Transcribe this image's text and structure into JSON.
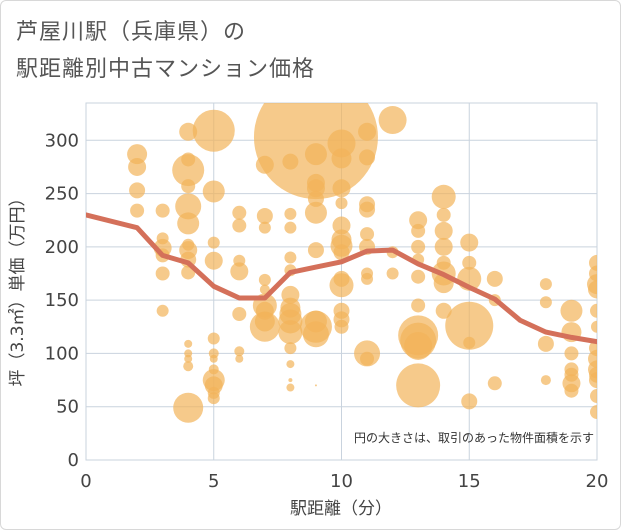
{
  "title_line1": "芦屋川駅（兵庫県）の",
  "title_line2": "駅距離別中古マンション価格",
  "note": "円の大きさは、取引のあった物件面積を示す",
  "chart_data": {
    "type": "scatter",
    "xlabel": "駅距離（分）",
    "ylabel": "坪（3.3㎡）単価（万円）",
    "xlim": [
      0,
      20
    ],
    "ylim": [
      0,
      335
    ],
    "xticks": [
      0,
      5,
      10,
      15,
      20
    ],
    "yticks": [
      0,
      50,
      100,
      150,
      200,
      250,
      300
    ],
    "grid": true,
    "colors": {
      "bubble": "#f2b45a",
      "trend": "#d4705a",
      "grid": "#c9d3de",
      "plot_bg": "#ffffff"
    },
    "bubbles": [
      {
        "x": 2,
        "y": 287,
        "s": 10
      },
      {
        "x": 2,
        "y": 275,
        "s": 9
      },
      {
        "x": 2,
        "y": 253,
        "s": 8
      },
      {
        "x": 2,
        "y": 234,
        "s": 7
      },
      {
        "x": 3,
        "y": 234,
        "s": 7
      },
      {
        "x": 3,
        "y": 208,
        "s": 6
      },
      {
        "x": 3,
        "y": 199,
        "s": 9
      },
      {
        "x": 3,
        "y": 192,
        "s": 7
      },
      {
        "x": 3,
        "y": 175,
        "s": 7
      },
      {
        "x": 3,
        "y": 140,
        "s": 6
      },
      {
        "x": 4,
        "y": 308,
        "s": 9
      },
      {
        "x": 4,
        "y": 282,
        "s": 7
      },
      {
        "x": 4,
        "y": 272,
        "s": 16
      },
      {
        "x": 4,
        "y": 257,
        "s": 7
      },
      {
        "x": 4,
        "y": 238,
        "s": 13
      },
      {
        "x": 4,
        "y": 222,
        "s": 11
      },
      {
        "x": 4,
        "y": 202,
        "s": 6
      },
      {
        "x": 4,
        "y": 197,
        "s": 9
      },
      {
        "x": 4,
        "y": 188,
        "s": 8
      },
      {
        "x": 4,
        "y": 176,
        "s": 7
      },
      {
        "x": 4,
        "y": 109,
        "s": 4
      },
      {
        "x": 4,
        "y": 100,
        "s": 4
      },
      {
        "x": 4,
        "y": 95,
        "s": 4
      },
      {
        "x": 4,
        "y": 88,
        "s": 5
      },
      {
        "x": 4,
        "y": 49,
        "s": 15
      },
      {
        "x": 5,
        "y": 309,
        "s": 21
      },
      {
        "x": 5,
        "y": 252,
        "s": 11
      },
      {
        "x": 5,
        "y": 204,
        "s": 6
      },
      {
        "x": 5,
        "y": 187,
        "s": 9
      },
      {
        "x": 5,
        "y": 114,
        "s": 6
      },
      {
        "x": 5,
        "y": 100,
        "s": 5
      },
      {
        "x": 5,
        "y": 95,
        "s": 4
      },
      {
        "x": 5,
        "y": 85,
        "s": 5
      },
      {
        "x": 5,
        "y": 75,
        "s": 11
      },
      {
        "x": 5,
        "y": 70,
        "s": 9
      },
      {
        "x": 5,
        "y": 63,
        "s": 6
      },
      {
        "x": 5,
        "y": 58,
        "s": 6
      },
      {
        "x": 6,
        "y": 232,
        "s": 7
      },
      {
        "x": 6,
        "y": 220,
        "s": 7
      },
      {
        "x": 6,
        "y": 187,
        "s": 6
      },
      {
        "x": 6,
        "y": 177,
        "s": 9
      },
      {
        "x": 6,
        "y": 137,
        "s": 7
      },
      {
        "x": 6,
        "y": 102,
        "s": 5
      },
      {
        "x": 6,
        "y": 95,
        "s": 4
      },
      {
        "x": 7,
        "y": 277,
        "s": 9
      },
      {
        "x": 7,
        "y": 229,
        "s": 8
      },
      {
        "x": 7,
        "y": 218,
        "s": 6
      },
      {
        "x": 7,
        "y": 169,
        "s": 6
      },
      {
        "x": 7,
        "y": 160,
        "s": 5
      },
      {
        "x": 7,
        "y": 145,
        "s": 12
      },
      {
        "x": 7,
        "y": 140,
        "s": 9
      },
      {
        "x": 7,
        "y": 130,
        "s": 10
      },
      {
        "x": 7,
        "y": 125,
        "s": 15
      },
      {
        "x": 8,
        "y": 280,
        "s": 8
      },
      {
        "x": 8,
        "y": 231,
        "s": 6
      },
      {
        "x": 8,
        "y": 218,
        "s": 6
      },
      {
        "x": 8,
        "y": 190,
        "s": 6
      },
      {
        "x": 8,
        "y": 178,
        "s": 6
      },
      {
        "x": 8,
        "y": 155,
        "s": 9
      },
      {
        "x": 8,
        "y": 143,
        "s": 10
      },
      {
        "x": 8,
        "y": 137,
        "s": 11
      },
      {
        "x": 8,
        "y": 130,
        "s": 12
      },
      {
        "x": 8,
        "y": 120,
        "s": 12
      },
      {
        "x": 8,
        "y": 105,
        "s": 6
      },
      {
        "x": 8,
        "y": 90,
        "s": 4
      },
      {
        "x": 8,
        "y": 75,
        "s": 2
      },
      {
        "x": 8,
        "y": 68,
        "s": 4
      },
      {
        "x": 9,
        "y": 303,
        "s": 62
      },
      {
        "x": 9,
        "y": 287,
        "s": 11
      },
      {
        "x": 9,
        "y": 260,
        "s": 9
      },
      {
        "x": 9,
        "y": 255,
        "s": 9
      },
      {
        "x": 9,
        "y": 245,
        "s": 8
      },
      {
        "x": 9,
        "y": 232,
        "s": 11
      },
      {
        "x": 9,
        "y": 197,
        "s": 8
      },
      {
        "x": 9,
        "y": 130,
        "s": 11
      },
      {
        "x": 9,
        "y": 125,
        "s": 16
      },
      {
        "x": 9,
        "y": 118,
        "s": 13
      },
      {
        "x": 9,
        "y": 70,
        "s": 1
      },
      {
        "x": 10,
        "y": 297,
        "s": 14
      },
      {
        "x": 10,
        "y": 283,
        "s": 10
      },
      {
        "x": 10,
        "y": 255,
        "s": 9
      },
      {
        "x": 10,
        "y": 241,
        "s": 6
      },
      {
        "x": 10,
        "y": 220,
        "s": 9
      },
      {
        "x": 10,
        "y": 207,
        "s": 10
      },
      {
        "x": 10,
        "y": 201,
        "s": 11
      },
      {
        "x": 10,
        "y": 195,
        "s": 8
      },
      {
        "x": 10,
        "y": 170,
        "s": 8
      },
      {
        "x": 10,
        "y": 164,
        "s": 12
      },
      {
        "x": 10,
        "y": 140,
        "s": 8
      },
      {
        "x": 10,
        "y": 132,
        "s": 8
      },
      {
        "x": 10,
        "y": 125,
        "s": 7
      },
      {
        "x": 11,
        "y": 308,
        "s": 9
      },
      {
        "x": 11,
        "y": 284,
        "s": 8
      },
      {
        "x": 11,
        "y": 240,
        "s": 8
      },
      {
        "x": 11,
        "y": 235,
        "s": 8
      },
      {
        "x": 11,
        "y": 212,
        "s": 7
      },
      {
        "x": 11,
        "y": 200,
        "s": 8
      },
      {
        "x": 11,
        "y": 175,
        "s": 6
      },
      {
        "x": 11,
        "y": 170,
        "s": 6
      },
      {
        "x": 11,
        "y": 100,
        "s": 13
      },
      {
        "x": 11,
        "y": 95,
        "s": 7
      },
      {
        "x": 12,
        "y": 319,
        "s": 14
      },
      {
        "x": 12,
        "y": 195,
        "s": 6
      },
      {
        "x": 12,
        "y": 175,
        "s": 6
      },
      {
        "x": 13,
        "y": 225,
        "s": 9
      },
      {
        "x": 13,
        "y": 215,
        "s": 7
      },
      {
        "x": 13,
        "y": 200,
        "s": 7
      },
      {
        "x": 13,
        "y": 188,
        "s": 6
      },
      {
        "x": 13,
        "y": 172,
        "s": 7
      },
      {
        "x": 13,
        "y": 145,
        "s": 7
      },
      {
        "x": 13,
        "y": 117,
        "s": 20
      },
      {
        "x": 13,
        "y": 112,
        "s": 18
      },
      {
        "x": 13,
        "y": 107,
        "s": 14
      },
      {
        "x": 13,
        "y": 70,
        "s": 22
      },
      {
        "x": 14,
        "y": 247,
        "s": 12
      },
      {
        "x": 14,
        "y": 230,
        "s": 7
      },
      {
        "x": 14,
        "y": 215,
        "s": 9
      },
      {
        "x": 14,
        "y": 200,
        "s": 9
      },
      {
        "x": 14,
        "y": 185,
        "s": 7
      },
      {
        "x": 14,
        "y": 175,
        "s": 12
      },
      {
        "x": 14,
        "y": 166,
        "s": 10
      },
      {
        "x": 14,
        "y": 140,
        "s": 8
      },
      {
        "x": 15,
        "y": 204,
        "s": 9
      },
      {
        "x": 15,
        "y": 185,
        "s": 7
      },
      {
        "x": 15,
        "y": 170,
        "s": 12
      },
      {
        "x": 15,
        "y": 126,
        "s": 24
      },
      {
        "x": 15,
        "y": 110,
        "s": 6
      },
      {
        "x": 15,
        "y": 55,
        "s": 8
      },
      {
        "x": 16,
        "y": 170,
        "s": 8
      },
      {
        "x": 16,
        "y": 150,
        "s": 6
      },
      {
        "x": 16,
        "y": 72,
        "s": 7
      },
      {
        "x": 18,
        "y": 165,
        "s": 6
      },
      {
        "x": 18,
        "y": 148,
        "s": 6
      },
      {
        "x": 18,
        "y": 109,
        "s": 8
      },
      {
        "x": 18,
        "y": 75,
        "s": 5
      },
      {
        "x": 19,
        "y": 140,
        "s": 11
      },
      {
        "x": 19,
        "y": 120,
        "s": 10
      },
      {
        "x": 19,
        "y": 100,
        "s": 7
      },
      {
        "x": 19,
        "y": 85,
        "s": 7
      },
      {
        "x": 19,
        "y": 80,
        "s": 7
      },
      {
        "x": 19,
        "y": 72,
        "s": 9
      },
      {
        "x": 19,
        "y": 65,
        "s": 7
      },
      {
        "x": 20,
        "y": 185,
        "s": 8
      },
      {
        "x": 20,
        "y": 175,
        "s": 8
      },
      {
        "x": 20,
        "y": 165,
        "s": 10
      },
      {
        "x": 20,
        "y": 160,
        "s": 9
      },
      {
        "x": 20,
        "y": 140,
        "s": 7
      },
      {
        "x": 20,
        "y": 125,
        "s": 6
      },
      {
        "x": 20,
        "y": 105,
        "s": 8
      },
      {
        "x": 20,
        "y": 95,
        "s": 9
      },
      {
        "x": 20,
        "y": 85,
        "s": 9
      },
      {
        "x": 20,
        "y": 80,
        "s": 8
      },
      {
        "x": 20,
        "y": 75,
        "s": 8
      },
      {
        "x": 20,
        "y": 60,
        "s": 7
      },
      {
        "x": 20,
        "y": 45,
        "s": 7
      }
    ],
    "trend": [
      {
        "x": 0,
        "y": 230
      },
      {
        "x": 2,
        "y": 218
      },
      {
        "x": 3,
        "y": 192
      },
      {
        "x": 4,
        "y": 185
      },
      {
        "x": 5,
        "y": 163
      },
      {
        "x": 6,
        "y": 152
      },
      {
        "x": 7,
        "y": 152
      },
      {
        "x": 8,
        "y": 176
      },
      {
        "x": 9,
        "y": 181
      },
      {
        "x": 10,
        "y": 186
      },
      {
        "x": 11,
        "y": 196
      },
      {
        "x": 12,
        "y": 197
      },
      {
        "x": 13,
        "y": 184
      },
      {
        "x": 14,
        "y": 174
      },
      {
        "x": 15,
        "y": 162
      },
      {
        "x": 16,
        "y": 151
      },
      {
        "x": 17,
        "y": 131
      },
      {
        "x": 18,
        "y": 120
      },
      {
        "x": 19,
        "y": 115
      },
      {
        "x": 20,
        "y": 111
      }
    ]
  }
}
